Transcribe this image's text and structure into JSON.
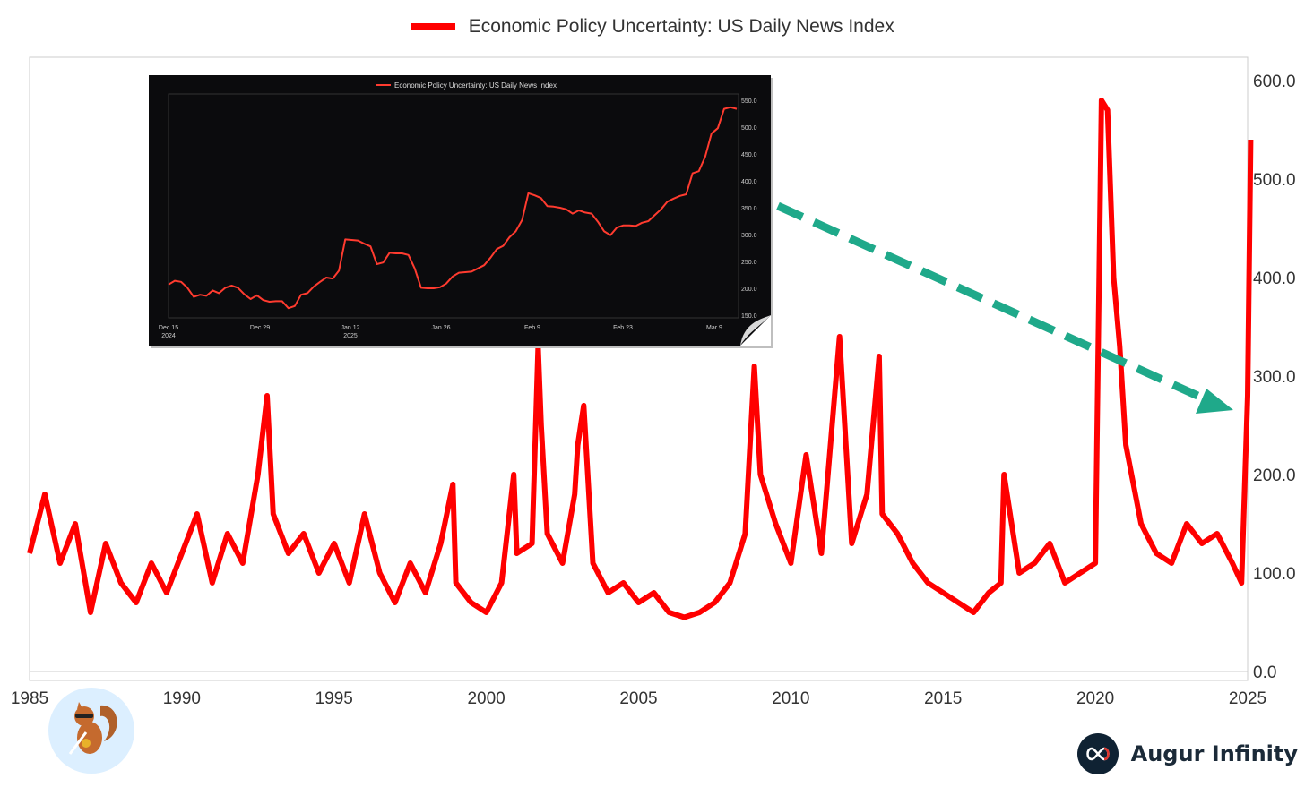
{
  "legend": {
    "label": "Economic Policy Uncertainty: US Daily News Index",
    "color": "#ff0000"
  },
  "brand": {
    "name": "Augur Infinity"
  },
  "chart_data": [
    {
      "type": "line",
      "series": [
        {
          "name": "Economic Policy Uncertainty: US Daily News Index",
          "color": "#ff0000",
          "x": [
            1985.0,
            1985.5,
            1986.0,
            1986.5,
            1987.0,
            1987.5,
            1988.0,
            1988.5,
            1989.0,
            1989.5,
            1990.0,
            1990.5,
            1991.0,
            1991.5,
            1992.0,
            1992.5,
            1992.8,
            1993.0,
            1993.5,
            1994.0,
            1994.5,
            1995.0,
            1995.5,
            1996.0,
            1996.5,
            1997.0,
            1997.5,
            1998.0,
            1998.5,
            1998.9,
            1999.0,
            1999.5,
            2000.0,
            2000.5,
            2000.9,
            2001.0,
            2001.5,
            2001.7,
            2001.8,
            2002.0,
            2002.5,
            2002.9,
            2003.0,
            2003.2,
            2003.5,
            2004.0,
            2004.5,
            2005.0,
            2005.5,
            2006.0,
            2006.5,
            2007.0,
            2007.5,
            2008.0,
            2008.5,
            2008.8,
            2009.0,
            2009.5,
            2010.0,
            2010.5,
            2011.0,
            2011.6,
            2012.0,
            2012.5,
            2012.9,
            2013.0,
            2013.5,
            2014.0,
            2014.5,
            2015.0,
            2015.5,
            2016.0,
            2016.5,
            2016.9,
            2017.0,
            2017.5,
            2018.0,
            2018.5,
            2019.0,
            2019.5,
            2020.0,
            2020.2,
            2020.4,
            2020.6,
            2020.8,
            2021.0,
            2021.5,
            2022.0,
            2022.5,
            2023.0,
            2023.5,
            2024.0,
            2024.5,
            2024.8,
            2025.0,
            2025.1
          ],
          "y": [
            120,
            180,
            110,
            150,
            60,
            130,
            90,
            70,
            110,
            80,
            120,
            160,
            90,
            140,
            110,
            200,
            280,
            160,
            120,
            140,
            100,
            130,
            90,
            160,
            100,
            70,
            110,
            80,
            130,
            190,
            90,
            70,
            60,
            90,
            200,
            120,
            130,
            330,
            250,
            140,
            110,
            180,
            230,
            270,
            110,
            80,
            90,
            70,
            80,
            60,
            55,
            60,
            70,
            90,
            140,
            310,
            200,
            150,
            110,
            220,
            120,
            340,
            130,
            180,
            320,
            160,
            140,
            110,
            90,
            80,
            70,
            60,
            80,
            90,
            200,
            100,
            110,
            130,
            90,
            100,
            110,
            580,
            570,
            400,
            330,
            230,
            150,
            120,
            110,
            150,
            130,
            140,
            110,
            90,
            280,
            540
          ]
        }
      ],
      "xlim": [
        1985,
        2025
      ],
      "ylim": [
        0,
        620
      ],
      "x_ticks": [
        "1985",
        "1990",
        "1995",
        "2000",
        "2005",
        "2010",
        "2015",
        "2020",
        "2025"
      ],
      "y_ticks": [
        "0.0",
        "100.0",
        "200.0",
        "300.0",
        "400.0",
        "500.0",
        "600.0"
      ],
      "grid": false,
      "legend_position": "top-center"
    },
    {
      "type": "line",
      "series": [
        {
          "name": "Economic Policy Uncertainty: US Daily News Index",
          "color": "#ff3b2f",
          "y": [
            207,
            214,
            212,
            201,
            184,
            188,
            186,
            196,
            191,
            201,
            205,
            201,
            189,
            180,
            187,
            178,
            175,
            176,
            176,
            163,
            167,
            188,
            191,
            203,
            212,
            220,
            218,
            233,
            291,
            290,
            289,
            283,
            278,
            245,
            248,
            266,
            265,
            265,
            262,
            237,
            201,
            200,
            200,
            202,
            209,
            222,
            229,
            230,
            231,
            237,
            243,
            257,
            273,
            279,
            295,
            306,
            327,
            377,
            373,
            368,
            353,
            352,
            350,
            347,
            339,
            345,
            341,
            339,
            324,
            306,
            299,
            313,
            317,
            317,
            316,
            322,
            325,
            336,
            347,
            361,
            367,
            372,
            375,
            414,
            418,
            445,
            488,
            498,
            534,
            537,
            534
          ]
        }
      ],
      "ylim": [
        150,
        560
      ],
      "x_ticks": [
        "Dec 15\n2024",
        "Dec 29",
        "Jan 12\n2025",
        "Jan 26",
        "Feb 9",
        "Feb 23",
        "Mar 9"
      ],
      "y_ticks": [
        "150.0",
        "200.0",
        "250.0",
        "300.0",
        "350.0",
        "400.0",
        "450.0",
        "500.0",
        "550.0"
      ],
      "legend_position": "top-center",
      "background": "#0b0b0d"
    }
  ]
}
